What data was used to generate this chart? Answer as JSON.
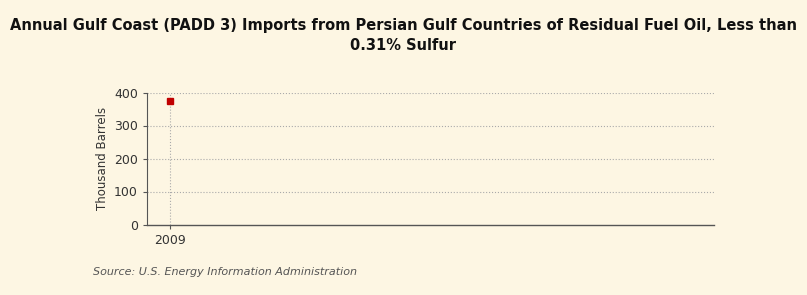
{
  "title_line1": "Annual Gulf Coast (PADD 3) Imports from Persian Gulf Countries of Residual Fuel Oil, Less than",
  "title_line2": "0.31% Sulfur",
  "ylabel": "Thousand Barrels",
  "source": "Source: U.S. Energy Information Administration",
  "x_data": [
    2009
  ],
  "y_data": [
    374
  ],
  "xlim": [
    2008.4,
    2023.5
  ],
  "ylim": [
    0,
    400
  ],
  "yticks": [
    0,
    100,
    200,
    300,
    400
  ],
  "xticks": [
    2009
  ],
  "marker_color": "#c00000",
  "background_color": "#fdf6e3",
  "grid_color": "#aaaaaa",
  "spine_color": "#555555",
  "title_fontsize": 10.5,
  "label_fontsize": 8.5,
  "tick_fontsize": 9,
  "source_fontsize": 8
}
